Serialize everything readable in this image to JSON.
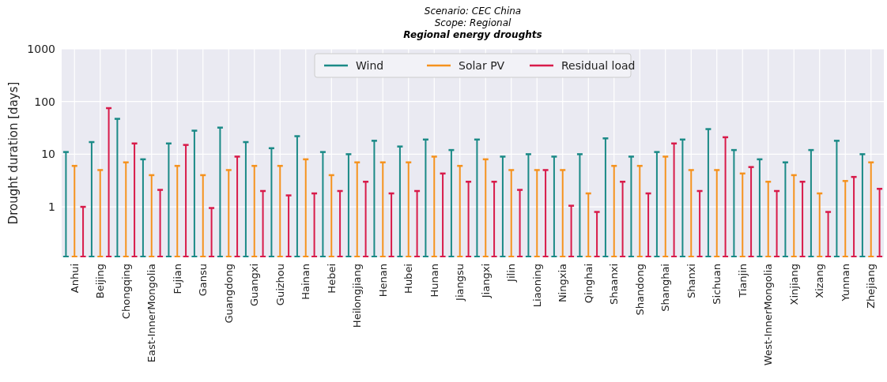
{
  "chart_data": {
    "type": "lollipop",
    "title": "Regional energy droughts",
    "subtitle": "Scenario: CEC China\nScope: Regional",
    "ylabel": "Drought duration [days]",
    "categories": [
      null,
      "Anhui",
      null,
      null,
      "Beijing",
      null,
      null,
      "Chongqing",
      null,
      null,
      "East-InnerMongolia",
      null,
      null,
      "Fujian",
      null,
      null,
      "Gansu",
      null,
      null,
      "Guangdong",
      null,
      null,
      "Guangxi",
      null,
      null,
      "Guizhou",
      null,
      null,
      "Hainan",
      null,
      null,
      "Hebei",
      null,
      null,
      "Heilongjiang",
      null,
      null,
      "Henan",
      null,
      null,
      "Hubei",
      null,
      null,
      "Hunan",
      null,
      null,
      "Jiangsu",
      null,
      null,
      "Jiangxi",
      null,
      null,
      "Jilin",
      null,
      null,
      "Liaoning",
      null,
      null,
      "Ningxia",
      null,
      null,
      "Qinghai",
      null,
      null,
      "Shaanxi",
      null,
      null,
      "Shandong",
      null,
      null,
      "Shanghai",
      null,
      null,
      "Shanxi",
      null,
      null,
      "Sichuan",
      null,
      null,
      "Tianjin",
      null,
      null,
      "West-InnerMongolia",
      null,
      null,
      "Xinjiang",
      null,
      null,
      "Xizang",
      null,
      null,
      "Yunnan",
      null,
      null,
      "Zhejiang",
      null
    ],
    "series": [
      {
        "name": "Wind",
        "color": "#1b8a87",
        "values": [
          11,
          null,
          null,
          17,
          null,
          null,
          47,
          null,
          null,
          8,
          null,
          null,
          16,
          null,
          null,
          28,
          null,
          null,
          32,
          null,
          null,
          17,
          null,
          null,
          13,
          null,
          null,
          22,
          null,
          null,
          11,
          null,
          null,
          10,
          null,
          null,
          18,
          null,
          null,
          14,
          null,
          null,
          19,
          null,
          null,
          12,
          null,
          null,
          19,
          null,
          null,
          9,
          null,
          null,
          10,
          null,
          null,
          9,
          null,
          null,
          10,
          null,
          null,
          20,
          null,
          null,
          9,
          null,
          null,
          11,
          null,
          null,
          19,
          null,
          null,
          30,
          null,
          null,
          12,
          null,
          null,
          8,
          null,
          null,
          7,
          null,
          null,
          12,
          null,
          null,
          18,
          null,
          null,
          10,
          null,
          null
        ]
      },
      {
        "name": "Solar PV",
        "color": "#f5921e",
        "values": [
          null,
          6,
          null,
          null,
          5,
          null,
          null,
          7,
          null,
          null,
          4,
          null,
          null,
          6,
          null,
          null,
          4,
          null,
          null,
          5,
          null,
          null,
          6,
          null,
          null,
          6,
          null,
          null,
          8,
          null,
          null,
          4,
          null,
          null,
          7,
          null,
          null,
          7,
          null,
          null,
          7,
          null,
          null,
          9,
          null,
          null,
          6,
          null,
          null,
          8,
          null,
          null,
          5,
          null,
          null,
          5,
          null,
          null,
          5,
          null,
          null,
          1.8,
          null,
          null,
          6,
          null,
          null,
          6,
          null,
          null,
          9,
          null,
          null,
          5,
          null,
          null,
          5,
          null,
          null,
          4.3,
          null,
          null,
          3,
          null,
          null,
          4,
          null,
          null,
          1.8,
          null,
          null,
          3.1,
          null,
          null,
          7,
          null
        ]
      },
      {
        "name": "Residual load",
        "color": "#d81b4a",
        "values": [
          null,
          null,
          1.0,
          null,
          null,
          75,
          null,
          null,
          16,
          null,
          null,
          2.1,
          null,
          null,
          15,
          null,
          null,
          0.95,
          null,
          null,
          9,
          null,
          null,
          2,
          null,
          null,
          1.65,
          null,
          null,
          1.8,
          null,
          null,
          2,
          null,
          null,
          3,
          null,
          null,
          1.8,
          null,
          null,
          2,
          null,
          null,
          4.3,
          null,
          null,
          3,
          null,
          null,
          3,
          null,
          null,
          2.1,
          null,
          null,
          5,
          null,
          null,
          1.05,
          null,
          null,
          0.8,
          null,
          null,
          3,
          null,
          null,
          1.8,
          null,
          null,
          16,
          null,
          null,
          2,
          null,
          null,
          21,
          null,
          null,
          5.7,
          null,
          null,
          2,
          null,
          null,
          3,
          null,
          null,
          0.8,
          null,
          null,
          3.7,
          null,
          null,
          2.2
        ]
      }
    ],
    "log": true,
    "ylim": [
      0.11,
      1000
    ],
    "yticks": [
      1,
      10,
      100,
      1000
    ],
    "grid": true,
    "legend": "top"
  }
}
